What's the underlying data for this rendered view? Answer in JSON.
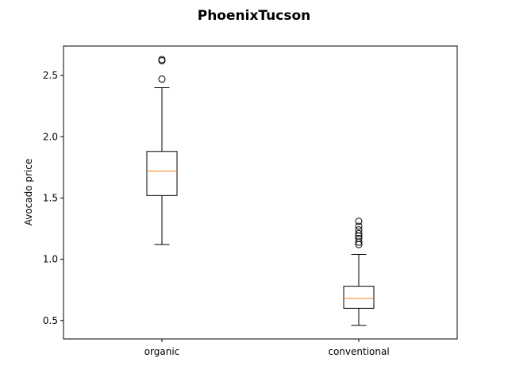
{
  "chart_data": {
    "type": "boxplot",
    "title": "PhoenixTucson",
    "xlabel": "",
    "ylabel": "Avocado price",
    "ylim": [
      0.35,
      2.74
    ],
    "yticks": [
      0.5,
      1.0,
      1.5,
      2.0,
      2.5
    ],
    "ytick_labels": [
      "0.5",
      "1.0",
      "1.5",
      "2.0",
      "2.5"
    ],
    "categories": [
      "organic",
      "conventional"
    ],
    "grid": false,
    "boxes": [
      {
        "category": "organic",
        "whisker_low": 1.12,
        "q1": 1.52,
        "median": 1.72,
        "q3": 1.88,
        "whisker_high": 2.4,
        "outliers": [
          2.47,
          2.62,
          2.63
        ]
      },
      {
        "category": "conventional",
        "whisker_low": 0.46,
        "q1": 0.6,
        "median": 0.68,
        "q3": 0.78,
        "whisker_high": 1.04,
        "outliers": [
          1.12,
          1.14,
          1.17,
          1.19,
          1.21,
          1.24,
          1.27,
          1.31
        ]
      }
    ],
    "colors": {
      "box": "#000000",
      "median": "#ff7f0e",
      "outlier": "#000000"
    }
  }
}
